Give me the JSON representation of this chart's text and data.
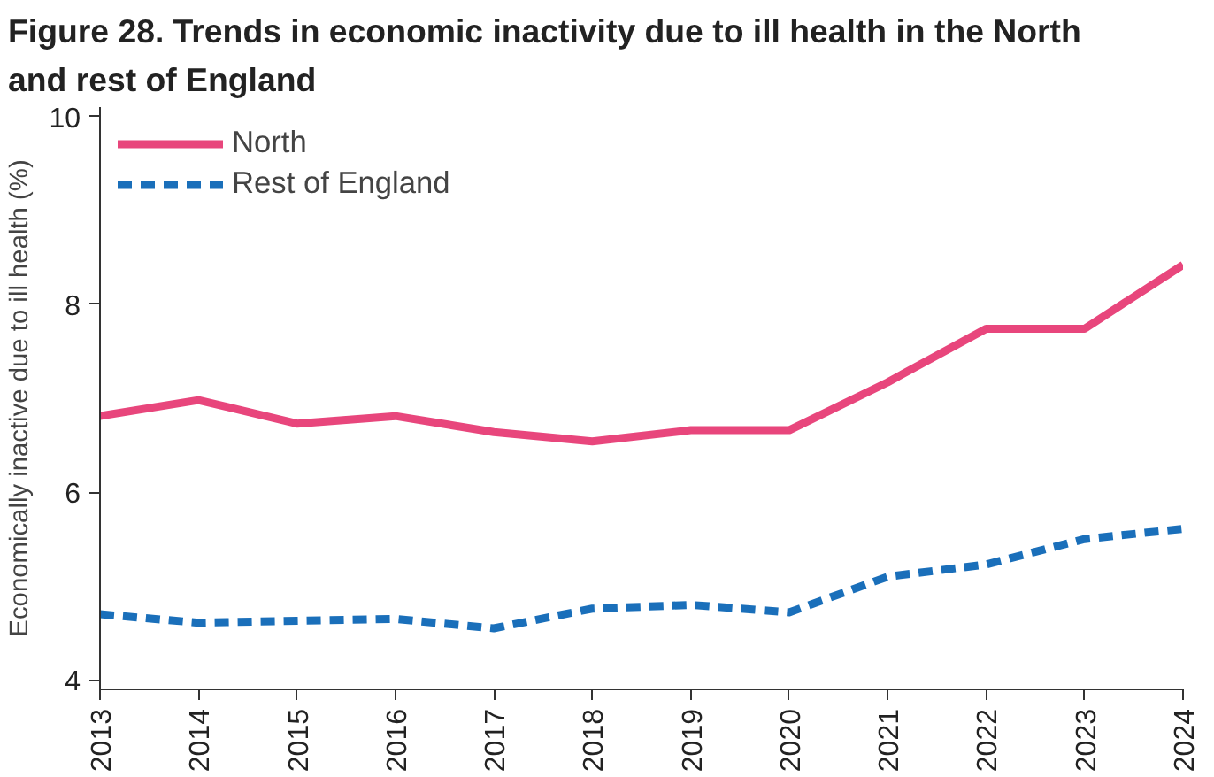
{
  "chart_data": {
    "type": "line",
    "title": "Figure 28. Trends in economic inactivity due to ill health in the North and rest of England",
    "ylabel": "Economically inactive due to ill health (%)",
    "x": [
      2013,
      2014,
      2015,
      2016,
      2017,
      2018,
      2019,
      2020,
      2021,
      2022,
      2023,
      2024
    ],
    "xlim": [
      2013,
      2024
    ],
    "xticks": [
      2013,
      2014,
      2015,
      2016,
      2017,
      2018,
      2019,
      2020,
      2021,
      2022,
      2023,
      2024
    ],
    "ylim": [
      3.9,
      10.1
    ],
    "yticks": [
      4,
      6,
      8,
      10
    ],
    "grid": false,
    "legend": "top left",
    "series": [
      {
        "name": "North",
        "color": "#e8467c",
        "line_style": "solid",
        "values": [
          6.81,
          6.98,
          6.73,
          6.81,
          6.64,
          6.54,
          6.66,
          6.66,
          7.17,
          7.74,
          7.74,
          8.42
        ]
      },
      {
        "name": "Rest of England",
        "color": "#1a6fba",
        "line_style": "dashed",
        "values": [
          4.7,
          4.61,
          4.63,
          4.65,
          4.55,
          4.76,
          4.8,
          4.72,
          5.1,
          5.23,
          5.5,
          5.61
        ]
      }
    ]
  }
}
